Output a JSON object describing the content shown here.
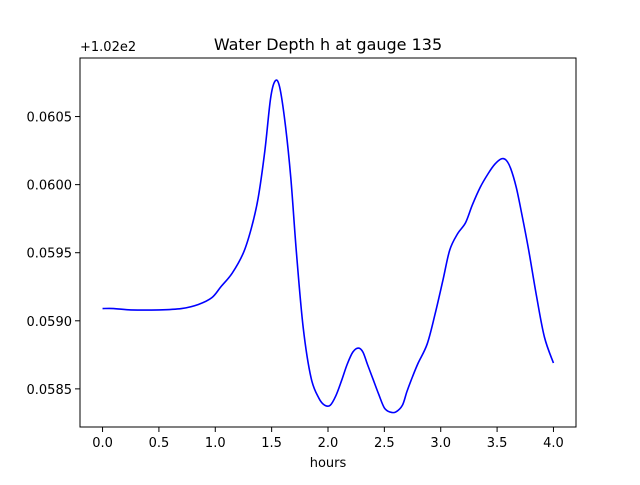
{
  "chart_data": {
    "type": "line",
    "title": "Water Depth h at gauge 135",
    "xlabel": "hours",
    "ylabel": "",
    "offset_label": "+1.02e2",
    "xlim": [
      -0.2,
      4.2
    ],
    "ylim": [
      0.05822,
      0.06093
    ],
    "x_ticks": [
      0.0,
      0.5,
      1.0,
      1.5,
      2.0,
      2.5,
      3.0,
      3.5,
      4.0
    ],
    "x_tick_labels": [
      "0.0",
      "0.5",
      "1.0",
      "1.5",
      "2.0",
      "2.5",
      "3.0",
      "3.5",
      "4.0"
    ],
    "y_ticks": [
      0.0585,
      0.059,
      0.0595,
      0.06,
      0.0605
    ],
    "y_tick_labels": [
      "0.0585",
      "0.0590",
      "0.0595",
      "0.0600",
      "0.0605"
    ],
    "grid": false,
    "series": [
      {
        "color": "#0000ff",
        "x": [
          0.0,
          0.1,
          0.25,
          0.5,
          0.7,
          0.85,
          0.97,
          1.05,
          1.15,
          1.25,
          1.32,
          1.38,
          1.44,
          1.49,
          1.53,
          1.57,
          1.62,
          1.67,
          1.72,
          1.78,
          1.85,
          1.92,
          1.97,
          2.02,
          2.07,
          2.12,
          2.17,
          2.22,
          2.27,
          2.31,
          2.35,
          2.4,
          2.45,
          2.5,
          2.55,
          2.6,
          2.66,
          2.7,
          2.75,
          2.8,
          2.88,
          2.95,
          3.02,
          3.08,
          3.15,
          3.22,
          3.28,
          3.35,
          3.42,
          3.48,
          3.54,
          3.58,
          3.62,
          3.67,
          3.72,
          3.78,
          3.85,
          3.92,
          4.0
        ],
        "y": [
          0.05909,
          0.05909,
          0.05908,
          0.05908,
          0.05909,
          0.05912,
          0.05917,
          0.05925,
          0.05935,
          0.0595,
          0.05968,
          0.0599,
          0.06025,
          0.06063,
          0.06076,
          0.06072,
          0.06045,
          0.06005,
          0.0595,
          0.05895,
          0.05858,
          0.05843,
          0.05838,
          0.05838,
          0.05845,
          0.05856,
          0.05868,
          0.05877,
          0.0588,
          0.05877,
          0.05868,
          0.05857,
          0.05846,
          0.05836,
          0.05833,
          0.05833,
          0.05838,
          0.05848,
          0.05859,
          0.05869,
          0.05883,
          0.05905,
          0.0593,
          0.05952,
          0.05964,
          0.05972,
          0.05985,
          0.05998,
          0.06008,
          0.06015,
          0.06019,
          0.06018,
          0.06012,
          0.05998,
          0.05978,
          0.05952,
          0.05918,
          0.05888,
          0.05869
        ]
      }
    ]
  }
}
